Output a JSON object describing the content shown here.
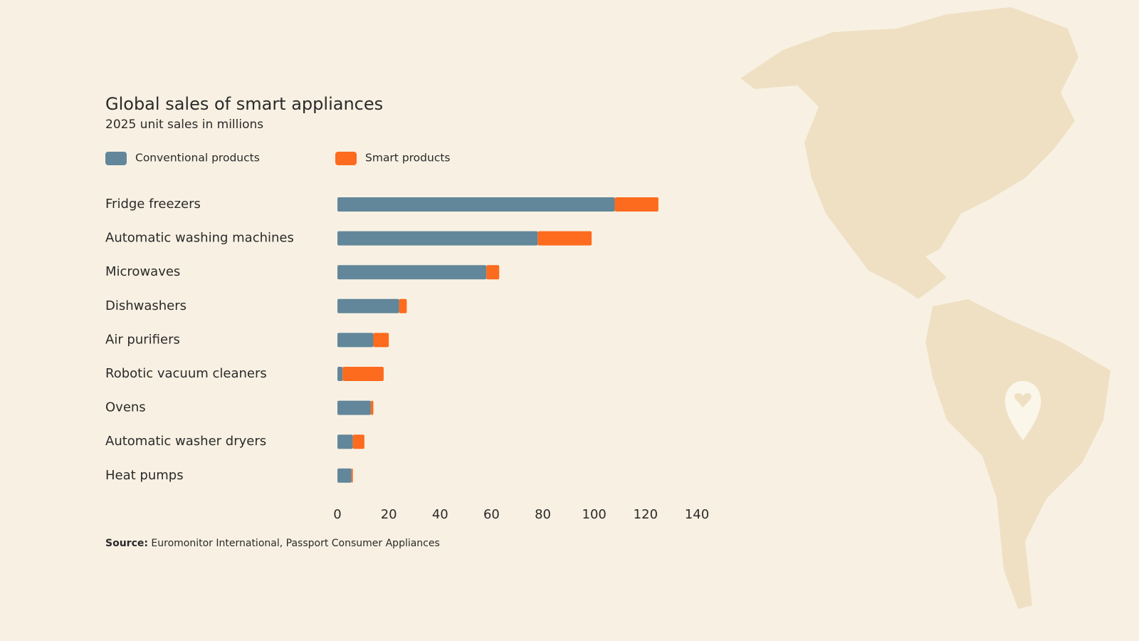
{
  "chart_data": {
    "type": "stacked-barh",
    "title": "Global sales of smart appliances",
    "subtitle": "2025 unit sales in millions",
    "categories": [
      "Fridge freezers",
      "Automatic washing machines",
      "Microwaves",
      "Dishwashers",
      "Air purifiers",
      "Robotic vacuum cleaners",
      "Ovens",
      "Automatic washer dryers",
      "Heat pumps"
    ],
    "series": [
      {
        "name": "Conventional products",
        "color": "#62879a",
        "values": [
          108,
          78,
          58,
          24,
          14,
          2,
          13,
          6,
          5.5
        ]
      },
      {
        "name": "Smart products",
        "color": "#fd6b1e",
        "values": [
          17,
          21,
          5,
          3,
          6,
          16,
          1,
          4.5,
          0.5
        ]
      }
    ],
    "xlim": [
      0,
      140
    ],
    "xticks": [
      0,
      20,
      40,
      60,
      80,
      100,
      120,
      140
    ],
    "source_label": "Source:",
    "source_text": "Euromonitor International, Passport Consumer Appliances"
  }
}
